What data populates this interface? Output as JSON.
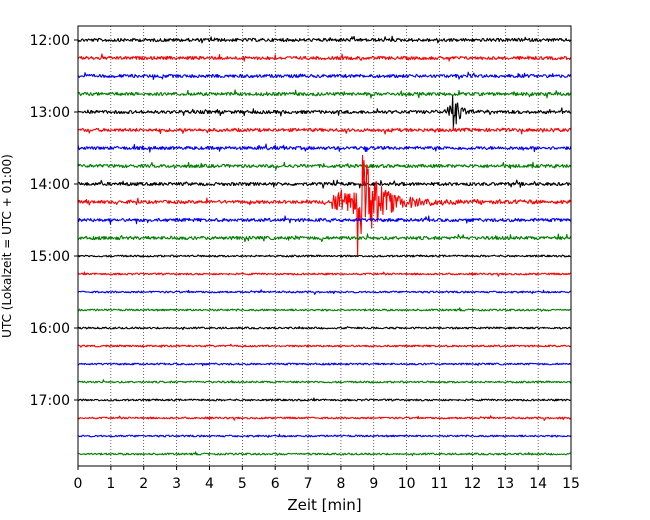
{
  "chart_data": {
    "type": "line",
    "title": "",
    "xlabel": "Zeit  [min]",
    "ylabel": "UTC (Lokalzeit = UTC + 01:00)",
    "xlim": [
      0,
      15
    ],
    "x_ticks": [
      0,
      1,
      2,
      3,
      4,
      5,
      6,
      7,
      8,
      9,
      10,
      11,
      12,
      13,
      14,
      15
    ],
    "x_tick_labels": [
      "0",
      "1",
      "2",
      "3",
      "4",
      "5",
      "6",
      "7",
      "8",
      "9",
      "10",
      "11",
      "12",
      "13",
      "14",
      "15"
    ],
    "y_tick_labels": [
      "12:00",
      "13:00",
      "14:00",
      "15:00",
      "16:00",
      "17:00"
    ],
    "grid": "vertical-dotted",
    "colors": [
      "#000000",
      "#ff0000",
      "#0000ff",
      "#008000"
    ],
    "series": [
      {
        "start": "12:00",
        "color": "#000000"
      },
      {
        "start": "12:15",
        "color": "#ff0000"
      },
      {
        "start": "12:30",
        "color": "#0000ff"
      },
      {
        "start": "12:45",
        "color": "#008000"
      },
      {
        "start": "13:00",
        "color": "#000000",
        "event": {
          "x": 11.3,
          "amplitude": "medium"
        }
      },
      {
        "start": "13:15",
        "color": "#ff0000"
      },
      {
        "start": "13:30",
        "color": "#0000ff"
      },
      {
        "start": "13:45",
        "color": "#008000"
      },
      {
        "start": "14:00",
        "color": "#000000"
      },
      {
        "start": "14:15",
        "color": "#ff0000",
        "event": {
          "x": 8.5,
          "amplitude": "large"
        }
      },
      {
        "start": "14:30",
        "color": "#0000ff"
      },
      {
        "start": "14:45",
        "color": "#008000"
      },
      {
        "start": "15:00",
        "color": "#000000"
      },
      {
        "start": "15:15",
        "color": "#ff0000"
      },
      {
        "start": "15:30",
        "color": "#0000ff"
      },
      {
        "start": "15:45",
        "color": "#008000"
      },
      {
        "start": "16:00",
        "color": "#000000"
      },
      {
        "start": "16:15",
        "color": "#ff0000"
      },
      {
        "start": "16:30",
        "color": "#0000ff"
      },
      {
        "start": "16:45",
        "color": "#008000"
      },
      {
        "start": "17:00",
        "color": "#000000"
      },
      {
        "start": "17:15",
        "color": "#ff0000"
      },
      {
        "start": "17:30",
        "color": "#0000ff"
      },
      {
        "start": "17:45",
        "color": "#008000"
      }
    ]
  }
}
